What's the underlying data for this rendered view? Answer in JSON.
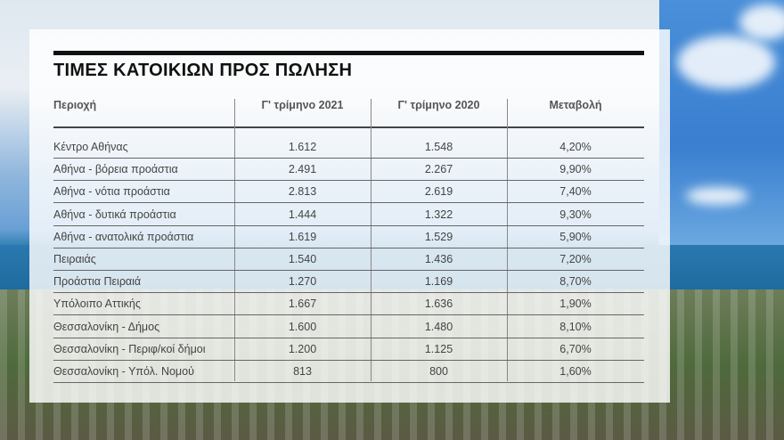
{
  "title": "ΤΙΜΕΣ ΚΑΤΟΙΚΙΩΝ ΠΡΟΣ ΠΩΛΗΣΗ",
  "table": {
    "headers": [
      "Περιοχή",
      "Γ' τρίμηνο 2021",
      "Γ' τρίμηνο 2020",
      "Μεταβολή"
    ],
    "rows": [
      [
        "Κέντρο Αθήνας",
        "1.612",
        "1.548",
        "4,20%"
      ],
      [
        "Αθήνα - βόρεια προάστια",
        "2.491",
        "2.267",
        "9,90%"
      ],
      [
        "Αθήνα - νότια προάστια",
        "2.813",
        "2.619",
        "7,40%"
      ],
      [
        "Αθήνα - δυτικά προάστια",
        "1.444",
        "1.322",
        "9,30%"
      ],
      [
        "Αθήνα - ανατολικά προάστια",
        "1.619",
        "1.529",
        "5,90%"
      ],
      [
        "Πειραιάς",
        "1.540",
        "1.436",
        "7,20%"
      ],
      [
        "Προάστια Πειραιά",
        "1.270",
        "1.169",
        "8,70%"
      ],
      [
        "Υπόλοιπο Αττικής",
        "1.667",
        "1.636",
        "1,90%"
      ],
      [
        "Θεσσαλονίκη - Δήμος",
        "1.600",
        "1.480",
        "8,10%"
      ],
      [
        "Θεσσαλονίκη - Περιφ/κοί δήμοι",
        "1.200",
        "1.125",
        "6,70%"
      ],
      [
        "Θεσσαλονίκη - Υπόλ. Νομού",
        "813",
        "800",
        "1,60%"
      ]
    ]
  }
}
